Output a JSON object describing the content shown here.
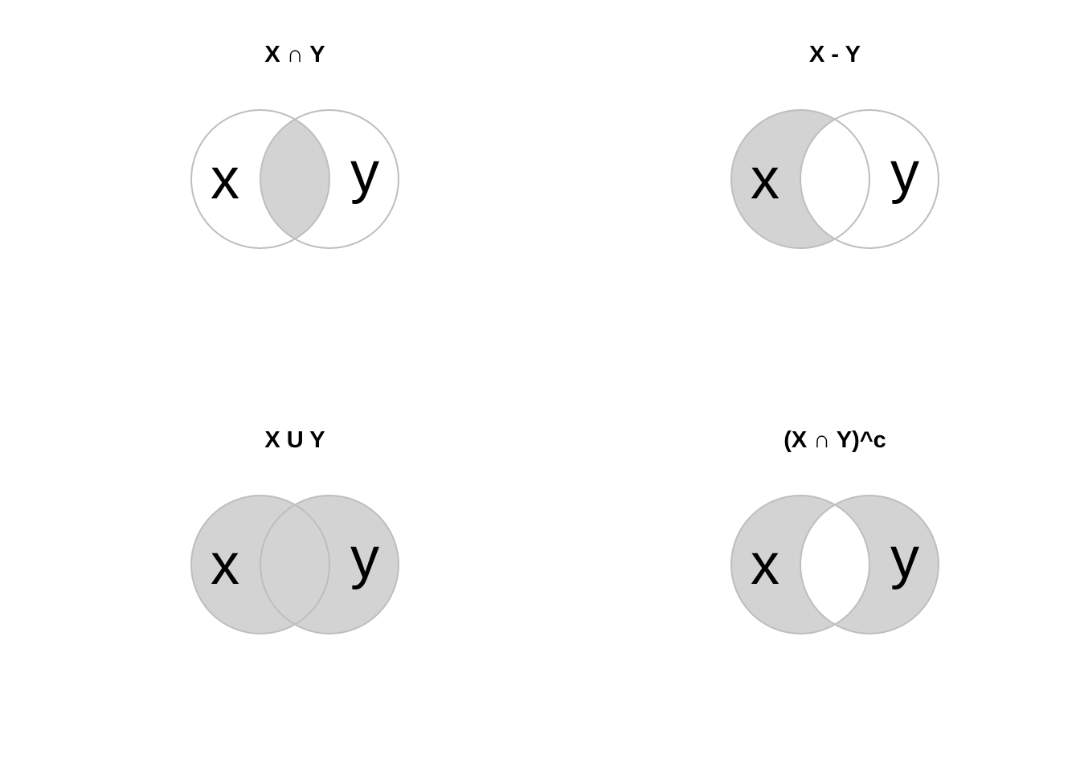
{
  "colors": {
    "background": "#ffffff",
    "shade": "#d3d3d3",
    "outline": "#bebebe",
    "text": "#000000"
  },
  "panels": [
    {
      "title": "X ∩ Y",
      "left_label": "x",
      "right_label": "y",
      "shaded_regions": [
        "intersection"
      ]
    },
    {
      "title": "X - Y",
      "left_label": "x",
      "right_label": "y",
      "shaded_regions": [
        "left_only"
      ]
    },
    {
      "title": "X U Y",
      "left_label": "x",
      "right_label": "y",
      "shaded_regions": [
        "left_only",
        "intersection",
        "right_only"
      ]
    },
    {
      "title": "(X ∩ Y)^c",
      "left_label": "x",
      "right_label": "y",
      "shaded_regions": [
        "left_only",
        "right_only"
      ]
    }
  ]
}
